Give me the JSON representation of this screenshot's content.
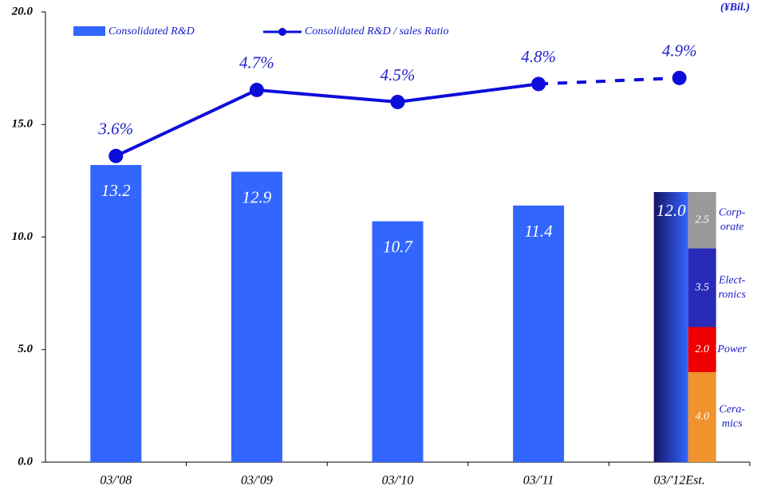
{
  "chart_data": {
    "type": "bar",
    "unit": "(¥Bil.)",
    "categories": [
      "03/'08",
      "03/'09",
      "03/'10",
      "03/'11",
      "03/'12Est."
    ],
    "series": [
      {
        "name": "Consolidated R&D",
        "type": "bar",
        "color": "#3366ff",
        "values": [
          13.2,
          12.9,
          10.7,
          11.4,
          12.0
        ],
        "value_labels": [
          "13.2",
          "12.9",
          "10.7",
          "11.4",
          "12.0"
        ]
      },
      {
        "name": "Consolidated R&D / sales Ratio",
        "type": "line",
        "axis": "y2",
        "color": "#0d0dd9",
        "values": [
          3.6,
          4.7,
          4.5,
          4.8,
          4.9
        ],
        "value_labels": [
          "3.6%",
          "4.7%",
          "4.5%",
          "4.8%",
          "4.9%"
        ],
        "segment_style": [
          "solid",
          "solid",
          "solid",
          "solid",
          "dashed"
        ]
      }
    ],
    "breakdown": [
      {
        "name": [
          "Cera-",
          "mics"
        ],
        "value": 4.0,
        "value_label": "4.0",
        "color": "#f0922e"
      },
      {
        "name": [
          "Power"
        ],
        "value": 2.0,
        "value_label": "2.0",
        "color": "#ee0000"
      },
      {
        "name": [
          "Elect-",
          "ronics"
        ],
        "value": 3.5,
        "value_label": "3.5",
        "color": "#2a2ab8"
      },
      {
        "name": [
          "Corp-",
          "orate"
        ],
        "value": 2.5,
        "value_label": "2.5",
        "color": "#9a9a9a"
      }
    ],
    "ylim": [
      0,
      20
    ],
    "yticks": [
      {
        "value": 0,
        "label": "0.0"
      },
      {
        "value": 5,
        "label": "5.0"
      },
      {
        "value": 10,
        "label": "10.0"
      },
      {
        "value": 15,
        "label": "15.0"
      },
      {
        "value": 20,
        "label": "20.0"
      }
    ],
    "y2lim": [
      -1.5,
      6.0
    ],
    "grid": false
  }
}
